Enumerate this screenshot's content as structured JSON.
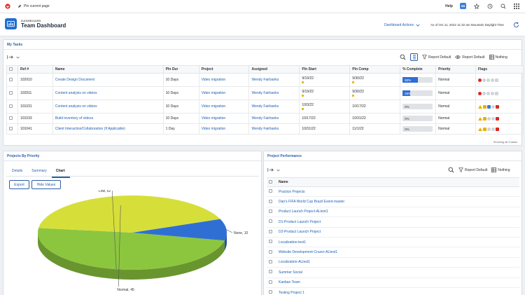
{
  "topbar": {
    "pin_label": "Pin current page",
    "help": "Help",
    "badge": "SB"
  },
  "header": {
    "section_label": "DASHBOARD",
    "title": "Team Dashboard",
    "actions": "Dashboard Actions",
    "as_of": "As of  Oct 11, 2022 11:32 am Mountain Daylight Time"
  },
  "tasks": {
    "title": "My Tasks",
    "report_default_1": "Report Default",
    "report_default_2": "Report Default",
    "nothing": "Nothing",
    "columns": [
      "Ref #",
      "Name",
      "Pln Dur",
      "Project",
      "Assigned",
      "Pln Start",
      "Pln Comp",
      "% Complete",
      "Priority",
      "Flags"
    ],
    "rows": [
      {
        "ref": "102910",
        "name": "Create Design Document",
        "dur": "10 Days",
        "project": "Video migration",
        "assigned": "Wendy Fairbanks",
        "start": "9/19/22",
        "comp": "9/30/22",
        "pct_label": "50%",
        "pct": 50,
        "priority": "Normal"
      },
      {
        "ref": "102911",
        "name": "Content analysis on videos",
        "dur": "10 Days",
        "project": "Video migration",
        "assigned": "Wendy Fairbanks",
        "start": "9/19/22",
        "comp": "9/30/22",
        "pct_label": "25%",
        "pct": 25,
        "priority": "Normal"
      },
      {
        "ref": "101031",
        "name": "Content analysis on videos",
        "dur": "10 Days",
        "project": "Video migration",
        "assigned": "Wendy Fairbanks",
        "start": "10/3/22",
        "comp": "10/17/22",
        "pct_label": "0%",
        "pct": 0,
        "priority": "Normal"
      },
      {
        "ref": "101033",
        "name": "Build inventory of videos",
        "dur": "10 Days",
        "project": "Video migration",
        "assigned": "Wendy Fairbanks",
        "start": "10/17/22",
        "comp": "10/31/22",
        "pct_label": "0%",
        "pct": 0,
        "priority": "Normal"
      },
      {
        "ref": "101041",
        "name": "Client Interaction/Collaboration (If Applicable)",
        "dur": "1 Day",
        "project": "Video migration",
        "assigned": "Wendy Fairbanks",
        "start": "10/31/22",
        "comp": "11/1/22",
        "pct_label": "0%",
        "pct": 0,
        "priority": "Normal"
      }
    ],
    "showing": "Showing all  5  tasks"
  },
  "priority_panel": {
    "title": "Projects By Priority",
    "tabs": [
      "Details",
      "Summary",
      "Chart"
    ],
    "export": "Export",
    "hide_values": "Hide Values"
  },
  "chart_data": {
    "type": "pie",
    "title": "Projects By Priority",
    "categories": [
      "Low",
      "Normal",
      "None"
    ],
    "values": [
      52,
      45,
      10
    ],
    "labels": [
      "Low, 52",
      "Normal, 45",
      "None, 10"
    ],
    "colors": [
      "#8cc63f",
      "#d6df3a",
      "#2f6fd4"
    ]
  },
  "performance_panel": {
    "title": "Project Performance",
    "report_default": "Report Default",
    "nothing": "Nothing",
    "column": "Name",
    "projects": [
      "Practice Projects",
      "Dan's FIFA World Cup Brazil Event-master",
      "Product Launch Project-ALtest1",
      "D1-Product Launch Project",
      "D2-Product Launch Project",
      "Localization-test1",
      "Website Development-Cruzer-ALtest1",
      "Localization-ALtest1",
      "Summer Social",
      "Kanban Team",
      "Testing Project 1"
    ]
  }
}
